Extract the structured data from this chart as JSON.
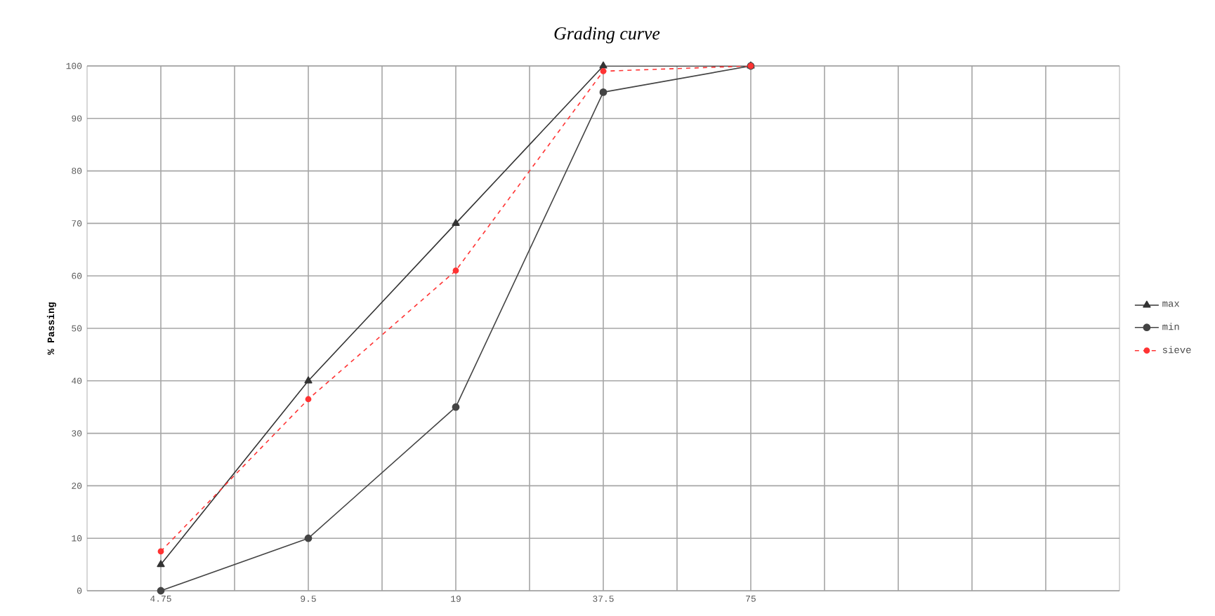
{
  "chart_data": {
    "type": "line",
    "title": "Grading curve",
    "ylabel": "% Passing",
    "categories": [
      "4.75",
      "9.5",
      "19",
      "37.5",
      "75",
      null,
      null
    ],
    "series": [
      {
        "name": "max",
        "color": "#333333",
        "marker": "triangle",
        "line_style": "solid",
        "values": [
          5,
          40,
          70,
          100,
          100,
          null,
          null
        ]
      },
      {
        "name": "min",
        "color": "#444444",
        "marker": "circle",
        "line_style": "solid",
        "values": [
          0,
          10,
          35,
          95,
          100,
          null,
          null
        ]
      },
      {
        "name": "sieve",
        "color": "#ff3333",
        "marker": "circle",
        "line_style": "dashed",
        "values": [
          7.5,
          36.5,
          61,
          99,
          100,
          null,
          null
        ]
      }
    ],
    "ylim": [
      0,
      100
    ],
    "yticks": [
      0,
      10,
      20,
      30,
      40,
      50,
      60,
      70,
      80,
      90,
      100
    ],
    "grid": true,
    "legend": "right"
  }
}
